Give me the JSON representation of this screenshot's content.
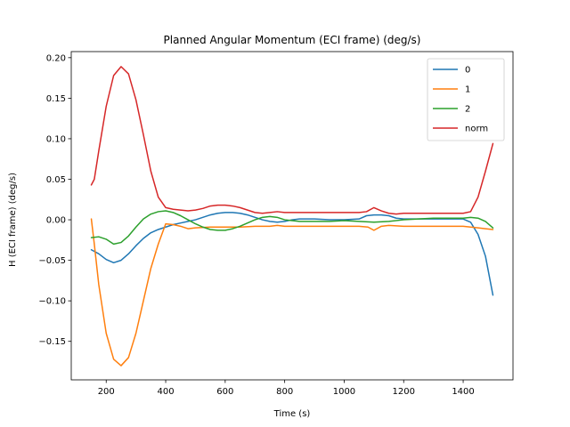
{
  "chart_data": {
    "type": "line",
    "title": "Planned Angular Momentum (ECI frame) (deg/s)",
    "xlabel": "Time (s)",
    "ylabel": "H (ECI frame) (deg/s)",
    "xlim": [
      82.5,
      1567.5
    ],
    "ylim": [
      -0.1975,
      0.2075
    ],
    "xticks": [
      200,
      400,
      600,
      800,
      1000,
      1200,
      1400
    ],
    "xtick_labels": [
      "200",
      "400",
      "600",
      "800",
      "1000",
      "1200",
      "1400"
    ],
    "yticks": [
      -0.15,
      -0.1,
      -0.05,
      0.0,
      0.05,
      0.1,
      0.15,
      0.2
    ],
    "ytick_labels": [
      "−0.15",
      "−0.10",
      "−0.05",
      "0.00",
      "0.05",
      "0.10",
      "0.15",
      "0.20"
    ],
    "grid": false,
    "legend_position": "top-right",
    "series": [
      {
        "name": "0",
        "color": "#1f77b4",
        "points": [
          [
            150,
            -0.037
          ],
          [
            175,
            -0.042
          ],
          [
            200,
            -0.049
          ],
          [
            225,
            -0.053
          ],
          [
            250,
            -0.05
          ],
          [
            275,
            -0.042
          ],
          [
            300,
            -0.032
          ],
          [
            325,
            -0.023
          ],
          [
            350,
            -0.016
          ],
          [
            375,
            -0.012
          ],
          [
            400,
            -0.009
          ],
          [
            425,
            -0.006
          ],
          [
            450,
            -0.004
          ],
          [
            475,
            -0.002
          ],
          [
            500,
            0.0
          ],
          [
            525,
            0.003
          ],
          [
            550,
            0.006
          ],
          [
            575,
            0.008
          ],
          [
            600,
            0.009
          ],
          [
            625,
            0.009
          ],
          [
            650,
            0.008
          ],
          [
            675,
            0.006
          ],
          [
            700,
            0.003
          ],
          [
            725,
            0.0
          ],
          [
            750,
            -0.002
          ],
          [
            775,
            -0.003
          ],
          [
            800,
            -0.002
          ],
          [
            825,
            0.0
          ],
          [
            850,
            0.001
          ],
          [
            875,
            0.001
          ],
          [
            900,
            0.001
          ],
          [
            950,
            0.0
          ],
          [
            1000,
            0.0
          ],
          [
            1050,
            0.001
          ],
          [
            1075,
            0.005
          ],
          [
            1100,
            0.006
          ],
          [
            1125,
            0.006
          ],
          [
            1150,
            0.005
          ],
          [
            1175,
            0.002
          ],
          [
            1200,
            0.001
          ],
          [
            1250,
            0.001
          ],
          [
            1300,
            0.001
          ],
          [
            1350,
            0.001
          ],
          [
            1400,
            0.001
          ],
          [
            1425,
            -0.003
          ],
          [
            1450,
            -0.018
          ],
          [
            1475,
            -0.045
          ],
          [
            1500,
            -0.093
          ]
        ]
      },
      {
        "name": "1",
        "color": "#ff7f0e",
        "points": [
          [
            150,
            0.001
          ],
          [
            160,
            -0.03
          ],
          [
            175,
            -0.08
          ],
          [
            200,
            -0.14
          ],
          [
            225,
            -0.172
          ],
          [
            250,
            -0.18
          ],
          [
            275,
            -0.17
          ],
          [
            300,
            -0.14
          ],
          [
            325,
            -0.1
          ],
          [
            350,
            -0.06
          ],
          [
            375,
            -0.03
          ],
          [
            400,
            -0.005
          ],
          [
            425,
            -0.006
          ],
          [
            450,
            -0.008
          ],
          [
            475,
            -0.011
          ],
          [
            500,
            -0.01
          ],
          [
            550,
            -0.009
          ],
          [
            600,
            -0.009
          ],
          [
            650,
            -0.009
          ],
          [
            700,
            -0.008
          ],
          [
            750,
            -0.008
          ],
          [
            775,
            -0.007
          ],
          [
            800,
            -0.008
          ],
          [
            850,
            -0.008
          ],
          [
            900,
            -0.008
          ],
          [
            950,
            -0.008
          ],
          [
            1000,
            -0.008
          ],
          [
            1050,
            -0.008
          ],
          [
            1080,
            -0.009
          ],
          [
            1100,
            -0.013
          ],
          [
            1125,
            -0.008
          ],
          [
            1150,
            -0.007
          ],
          [
            1200,
            -0.008
          ],
          [
            1250,
            -0.008
          ],
          [
            1300,
            -0.008
          ],
          [
            1350,
            -0.008
          ],
          [
            1400,
            -0.008
          ],
          [
            1425,
            -0.009
          ],
          [
            1450,
            -0.01
          ],
          [
            1475,
            -0.011
          ],
          [
            1500,
            -0.012
          ]
        ]
      },
      {
        "name": "2",
        "color": "#2ca02c",
        "points": [
          [
            150,
            -0.022
          ],
          [
            175,
            -0.021
          ],
          [
            200,
            -0.024
          ],
          [
            225,
            -0.03
          ],
          [
            250,
            -0.028
          ],
          [
            275,
            -0.02
          ],
          [
            300,
            -0.009
          ],
          [
            325,
            0.001
          ],
          [
            350,
            0.007
          ],
          [
            375,
            0.01
          ],
          [
            400,
            0.011
          ],
          [
            425,
            0.009
          ],
          [
            450,
            0.005
          ],
          [
            475,
            0.0
          ],
          [
            500,
            -0.005
          ],
          [
            525,
            -0.009
          ],
          [
            550,
            -0.012
          ],
          [
            575,
            -0.013
          ],
          [
            600,
            -0.013
          ],
          [
            625,
            -0.011
          ],
          [
            650,
            -0.008
          ],
          [
            675,
            -0.004
          ],
          [
            700,
            0.0
          ],
          [
            725,
            0.003
          ],
          [
            750,
            0.004
          ],
          [
            775,
            0.003
          ],
          [
            800,
            0.0
          ],
          [
            825,
            -0.001
          ],
          [
            850,
            -0.002
          ],
          [
            900,
            -0.002
          ],
          [
            950,
            -0.002
          ],
          [
            1000,
            -0.001
          ],
          [
            1050,
            -0.002
          ],
          [
            1100,
            -0.003
          ],
          [
            1150,
            -0.002
          ],
          [
            1200,
            0.0
          ],
          [
            1250,
            0.001
          ],
          [
            1300,
            0.002
          ],
          [
            1350,
            0.002
          ],
          [
            1400,
            0.002
          ],
          [
            1425,
            0.003
          ],
          [
            1450,
            0.002
          ],
          [
            1475,
            -0.002
          ],
          [
            1500,
            -0.01
          ]
        ]
      },
      {
        "name": "norm",
        "color": "#d62728",
        "points": [
          [
            150,
            0.043
          ],
          [
            160,
            0.05
          ],
          [
            175,
            0.085
          ],
          [
            200,
            0.14
          ],
          [
            225,
            0.178
          ],
          [
            250,
            0.189
          ],
          [
            275,
            0.18
          ],
          [
            300,
            0.148
          ],
          [
            325,
            0.105
          ],
          [
            350,
            0.06
          ],
          [
            375,
            0.028
          ],
          [
            400,
            0.015
          ],
          [
            425,
            0.013
          ],
          [
            450,
            0.012
          ],
          [
            475,
            0.011
          ],
          [
            500,
            0.012
          ],
          [
            525,
            0.014
          ],
          [
            550,
            0.017
          ],
          [
            575,
            0.018
          ],
          [
            600,
            0.018
          ],
          [
            625,
            0.017
          ],
          [
            650,
            0.015
          ],
          [
            675,
            0.012
          ],
          [
            700,
            0.009
          ],
          [
            725,
            0.008
          ],
          [
            750,
            0.009
          ],
          [
            775,
            0.01
          ],
          [
            800,
            0.009
          ],
          [
            850,
            0.009
          ],
          [
            900,
            0.009
          ],
          [
            950,
            0.009
          ],
          [
            1000,
            0.009
          ],
          [
            1050,
            0.009
          ],
          [
            1075,
            0.01
          ],
          [
            1100,
            0.015
          ],
          [
            1125,
            0.011
          ],
          [
            1150,
            0.008
          ],
          [
            1175,
            0.007
          ],
          [
            1200,
            0.008
          ],
          [
            1250,
            0.008
          ],
          [
            1300,
            0.008
          ],
          [
            1350,
            0.008
          ],
          [
            1400,
            0.008
          ],
          [
            1425,
            0.01
          ],
          [
            1450,
            0.028
          ],
          [
            1475,
            0.06
          ],
          [
            1500,
            0.094
          ]
        ]
      }
    ]
  }
}
